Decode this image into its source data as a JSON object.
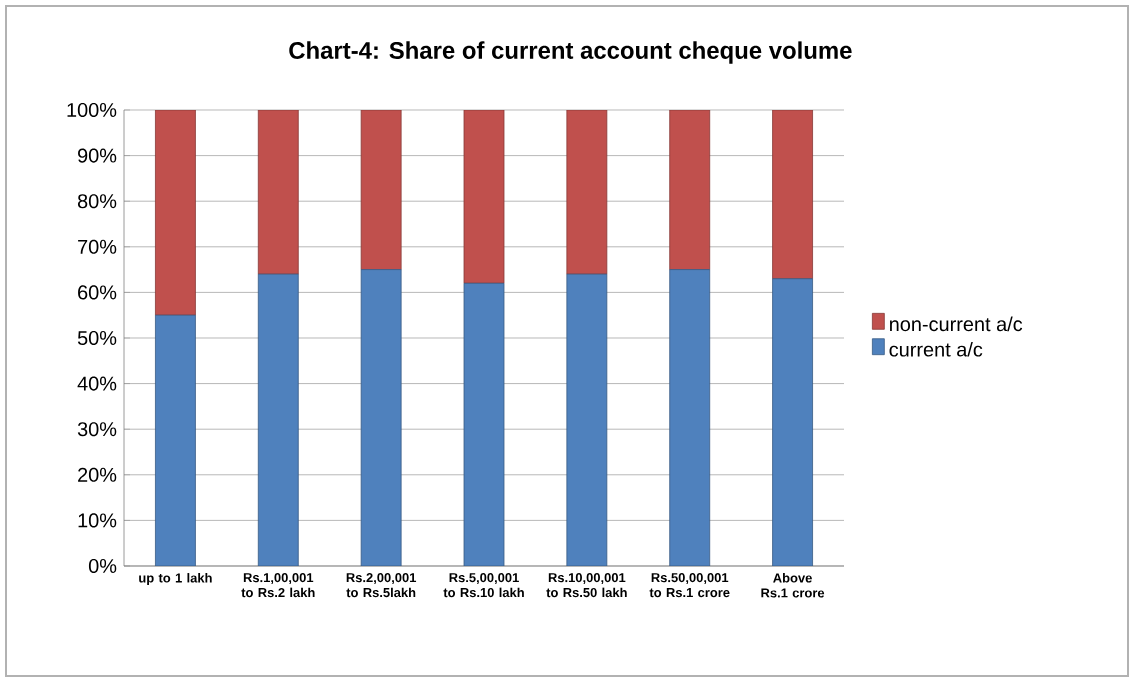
{
  "chart_data": {
    "type": "bar",
    "stacked": true,
    "title": "Chart-4: Share of current account cheque volume",
    "categories": [
      "up to 1 lakh",
      "Rs.1,00,001 to Rs.2 lakh",
      "Rs.2,00,001 to Rs.5lakh",
      "Rs.5,00,001 to Rs.10 lakh",
      "Rs.10,00,001 to Rs.50 lakh",
      "Rs.50,00,001 to Rs.1 crore",
      "Above Rs.1 crore"
    ],
    "series": [
      {
        "name": "current a/c",
        "color": "#4f81bd",
        "values": [
          55,
          64,
          65,
          62,
          64,
          65,
          63
        ]
      },
      {
        "name": "non-current a/c",
        "color": "#c0504d",
        "values": [
          45,
          36,
          35,
          38,
          36,
          35,
          37
        ]
      }
    ],
    "ylim": [
      0,
      100
    ],
    "yticks": [
      {
        "value": 0,
        "label": "0%"
      },
      {
        "value": 10,
        "label": "10%"
      },
      {
        "value": 20,
        "label": "20%"
      },
      {
        "value": 30,
        "label": "30%"
      },
      {
        "value": 40,
        "label": "40%"
      },
      {
        "value": 50,
        "label": "50%"
      },
      {
        "value": 60,
        "label": "60%"
      },
      {
        "value": 70,
        "label": "70%"
      },
      {
        "value": 80,
        "label": "80%"
      },
      {
        "value": 90,
        "label": "90%"
      },
      {
        "value": 100,
        "label": "100%"
      }
    ],
    "grid": "y",
    "legend": "right"
  }
}
